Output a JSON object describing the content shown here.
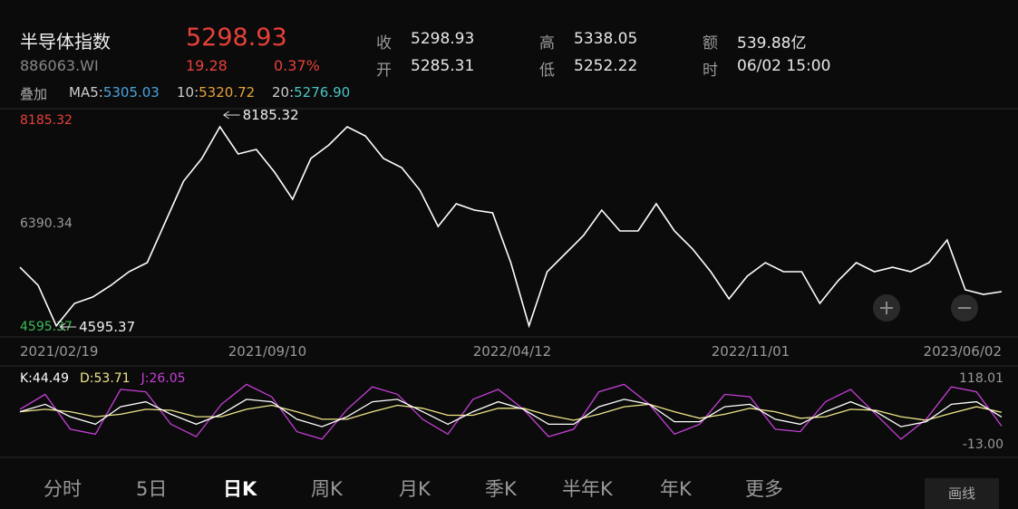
{
  "header": {
    "name": "半导体指数",
    "code": "886063.WI",
    "price": "5298.93",
    "change": "19.28",
    "change_pct": "0.37%",
    "stats": [
      {
        "label": "收",
        "value": "5298.93"
      },
      {
        "label": "开",
        "value": "5285.31"
      },
      {
        "label": "高",
        "value": "5338.05"
      },
      {
        "label": "低",
        "value": "5252.22"
      },
      {
        "label": "额",
        "value": "539.88亿"
      },
      {
        "label": "时",
        "value": "06/02 15:00"
      }
    ]
  },
  "ma_bar": {
    "overlay": "叠加",
    "items": [
      {
        "label": "MA5:",
        "value": "5305.03"
      },
      {
        "label": "10:",
        "value": "5320.72"
      },
      {
        "label": "20:",
        "value": "5276.90"
      }
    ]
  },
  "price_chart": {
    "type": "line",
    "color": "#ffffff",
    "values": [
      5618,
      5303,
      4600,
      4989,
      5099,
      5303,
      5540,
      5697,
      6406,
      7114,
      7508,
      8059,
      7587,
      7665,
      7272,
      6799,
      7508,
      7744,
      8059,
      7901,
      7508,
      7350,
      6957,
      6327,
      6721,
      6610,
      6563,
      5697,
      4600,
      5540,
      5855,
      6170,
      6610,
      6248,
      6248,
      6721,
      6248,
      5933,
      5540,
      5067,
      5461,
      5697,
      5540,
      5540,
      4989,
      5382,
      5697,
      5540,
      5618,
      5540,
      5697,
      6091,
      5225,
      5146,
      5193
    ],
    "ylim": [
      4595.37,
      8185.32
    ],
    "yticks": [
      4595.37,
      6390.34,
      8185.32
    ],
    "high_note": "8185.32",
    "low_note": "4595.37",
    "x_labels": [
      "2021/02/19",
      "2021/09/10",
      "2022/04/12",
      "2022/11/01",
      "2023/06/02"
    ]
  },
  "kdj_chart": {
    "type": "line",
    "ylim": [
      -13.0,
      118.01
    ],
    "top_label": "118.01",
    "bottom_label": "-13.00",
    "series": [
      {
        "name": "K:",
        "value_label": "44.49",
        "color": "#ffffff",
        "values": [
          55,
          70,
          45,
          30,
          65,
          75,
          50,
          30,
          50,
          80,
          75,
          40,
          25,
          45,
          75,
          80,
          55,
          30,
          55,
          75,
          60,
          30,
          30,
          65,
          80,
          70,
          35,
          35,
          65,
          70,
          40,
          30,
          55,
          75,
          55,
          25,
          35,
          70,
          75,
          44.49
        ]
      },
      {
        "name": "D:",
        "value_label": "53.71",
        "color": "#efe58a",
        "values": [
          55,
          60,
          55,
          45,
          50,
          60,
          58,
          45,
          45,
          60,
          68,
          55,
          40,
          40,
          55,
          68,
          62,
          48,
          48,
          62,
          62,
          48,
          38,
          50,
          65,
          70,
          55,
          42,
          50,
          62,
          55,
          42,
          45,
          60,
          58,
          45,
          38,
          52,
          65,
          53.71
        ]
      },
      {
        "name": "J:",
        "value_label": "26.05",
        "color": "#c63fd8",
        "values": [
          60,
          90,
          20,
          10,
          100,
          95,
          30,
          5,
          70,
          110,
          85,
          15,
          0,
          60,
          105,
          90,
          40,
          10,
          80,
          100,
          60,
          5,
          20,
          95,
          110,
          70,
          10,
          30,
          90,
          85,
          20,
          15,
          75,
          100,
          50,
          0,
          40,
          105,
          95,
          26.05
        ]
      }
    ]
  },
  "tabs": [
    "分时",
    "5日",
    "日K",
    "周K",
    "月K",
    "季K",
    "半年K",
    "年K",
    "更多"
  ],
  "active_tab": 2,
  "draw_button": "画线"
}
